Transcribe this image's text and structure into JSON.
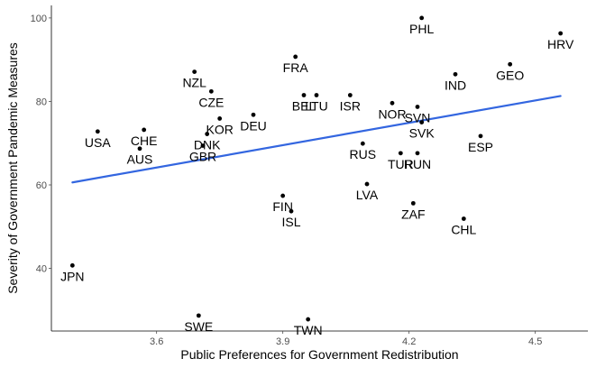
{
  "chart_data": {
    "type": "scatter",
    "xlabel": "Public Preferences for Government Redistribution",
    "ylabel": "Severity of Government Pandemic Measures",
    "xlim": [
      3.35,
      4.625
    ],
    "ylim": [
      25,
      103
    ],
    "x_ticks": [
      3.6,
      3.9,
      4.2,
      4.5
    ],
    "y_ticks": [
      40,
      60,
      80,
      100
    ],
    "x_tick_labels": [
      "3.6",
      "3.9",
      "4.2",
      "4.5"
    ],
    "y_tick_labels": [
      "40",
      "60",
      "80",
      "100"
    ],
    "grid": false,
    "colors": {
      "points": "#000000",
      "trend": "#3366e0",
      "axis": "#000000",
      "tick_text": "#4d4d4d"
    },
    "trend_line": {
      "x": [
        3.4,
        4.56
      ],
      "y": [
        60.6,
        81.3
      ]
    },
    "points": [
      {
        "label": "JPN",
        "x": 3.4,
        "y": 40.7
      },
      {
        "label": "USA",
        "x": 3.46,
        "y": 72.8
      },
      {
        "label": "CHE",
        "x": 3.57,
        "y": 73.2
      },
      {
        "label": "AUS",
        "x": 3.56,
        "y": 68.7
      },
      {
        "label": "NZL",
        "x": 3.69,
        "y": 87.1
      },
      {
        "label": "CZE",
        "x": 3.73,
        "y": 82.4
      },
      {
        "label": "KOR",
        "x": 3.75,
        "y": 75.9
      },
      {
        "label": "DNK",
        "x": 3.72,
        "y": 72.2
      },
      {
        "label": "GBR",
        "x": 3.71,
        "y": 69.4
      },
      {
        "label": "DEU",
        "x": 3.83,
        "y": 76.8
      },
      {
        "label": "FRA",
        "x": 3.93,
        "y": 90.7
      },
      {
        "label": "BEL",
        "x": 3.95,
        "y": 81.5
      },
      {
        "label": "LTU",
        "x": 3.98,
        "y": 81.5
      },
      {
        "label": "ISR",
        "x": 4.06,
        "y": 81.5
      },
      {
        "label": "FIN",
        "x": 3.9,
        "y": 57.4
      },
      {
        "label": "ISL",
        "x": 3.92,
        "y": 53.7
      },
      {
        "label": "SWE",
        "x": 3.7,
        "y": 28.7
      },
      {
        "label": "TWN",
        "x": 3.96,
        "y": 27.8
      },
      {
        "label": "RUS",
        "x": 4.09,
        "y": 69.9
      },
      {
        "label": "LVA",
        "x": 4.1,
        "y": 60.2
      },
      {
        "label": "NOR",
        "x": 4.16,
        "y": 79.6
      },
      {
        "label": "SVN",
        "x": 4.22,
        "y": 78.7
      },
      {
        "label": "SVK",
        "x": 4.23,
        "y": 75.0
      },
      {
        "label": "TUR",
        "x": 4.18,
        "y": 67.6
      },
      {
        "label": "RUN",
        "x": 4.22,
        "y": 67.6
      },
      {
        "label": "ZAF",
        "x": 4.21,
        "y": 55.6
      },
      {
        "label": "PHL",
        "x": 4.23,
        "y": 100.0
      },
      {
        "label": "IND",
        "x": 4.31,
        "y": 86.5
      },
      {
        "label": "ESP",
        "x": 4.37,
        "y": 71.7
      },
      {
        "label": "CHL",
        "x": 4.33,
        "y": 51.9
      },
      {
        "label": "GEO",
        "x": 4.44,
        "y": 88.9
      },
      {
        "label": "HRV",
        "x": 4.56,
        "y": 96.3
      }
    ]
  }
}
